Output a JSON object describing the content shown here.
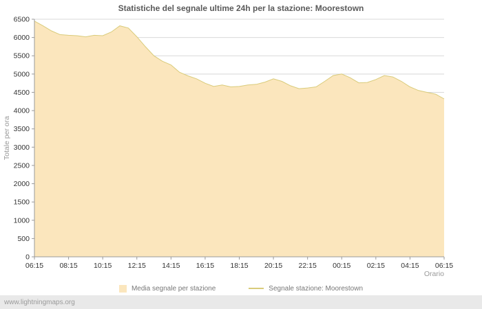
{
  "chart_data": {
    "type": "area",
    "title": "Statistiche del segnale ultime 24h per la stazione: Moorestown",
    "xlabel": "Orario",
    "ylabel": "Totale per ora",
    "ylim": [
      0,
      6500
    ],
    "y_tick_step": 500,
    "grid": "horizontal",
    "x_tick_labels": [
      "06:15",
      "08:15",
      "10:15",
      "12:15",
      "14:15",
      "16:15",
      "18:15",
      "20:15",
      "22:15",
      "00:15",
      "02:15",
      "04:15",
      "06:15"
    ],
    "x_hours_offset": [
      0,
      0.5,
      1,
      1.5,
      2,
      2.5,
      3,
      3.5,
      4,
      4.5,
      5,
      5.5,
      6,
      6.5,
      7,
      7.5,
      8,
      8.5,
      9,
      9.5,
      10,
      10.5,
      11,
      11.5,
      12,
      12.5,
      13,
      13.5,
      14,
      14.5,
      15,
      15.5,
      16,
      16.5,
      17,
      17.5,
      18,
      18.5,
      19,
      19.5,
      20,
      20.5,
      21,
      21.5,
      22,
      22.5,
      23,
      23.5,
      24
    ],
    "x_range_hours": 24,
    "series": [
      {
        "name": "Media segnale per stazione",
        "type": "area",
        "color": "#fbe6bd",
        "values": [
          6450,
          6320,
          6180,
          6080,
          6060,
          6050,
          6020,
          6060,
          6050,
          6150,
          6320,
          6260,
          6020,
          5750,
          5500,
          5350,
          5250,
          5050,
          4950,
          4870,
          4750,
          4660,
          4700,
          4650,
          4660,
          4700,
          4720,
          4780,
          4870,
          4800,
          4680,
          4600,
          4620,
          4650,
          4800,
          4960,
          5000,
          4900,
          4760,
          4770,
          4850,
          4960,
          4920,
          4800,
          4650,
          4550,
          4500,
          4450,
          4320
        ]
      },
      {
        "name": "Segnale stazione: Moorestown",
        "type": "line",
        "color": "#d9cb7a",
        "values": [
          6450,
          6320,
          6180,
          6080,
          6060,
          6050,
          6020,
          6060,
          6050,
          6150,
          6320,
          6260,
          6020,
          5750,
          5500,
          5350,
          5250,
          5050,
          4950,
          4870,
          4750,
          4660,
          4700,
          4650,
          4660,
          4700,
          4720,
          4780,
          4870,
          4800,
          4680,
          4600,
          4620,
          4650,
          4800,
          4960,
          5000,
          4900,
          4760,
          4770,
          4850,
          4960,
          4920,
          4800,
          4650,
          4550,
          4500,
          4450,
          4320
        ]
      }
    ],
    "legend": {
      "position": "bottom",
      "entries": [
        {
          "label": "Media segnale per stazione",
          "swatch": "area",
          "color": "#fbe6bd"
        },
        {
          "label": "Segnale stazione: Moorestown",
          "swatch": "line",
          "color": "#d9cb7a"
        }
      ]
    }
  },
  "footer": {
    "watermark": "www.lightningmaps.org"
  }
}
